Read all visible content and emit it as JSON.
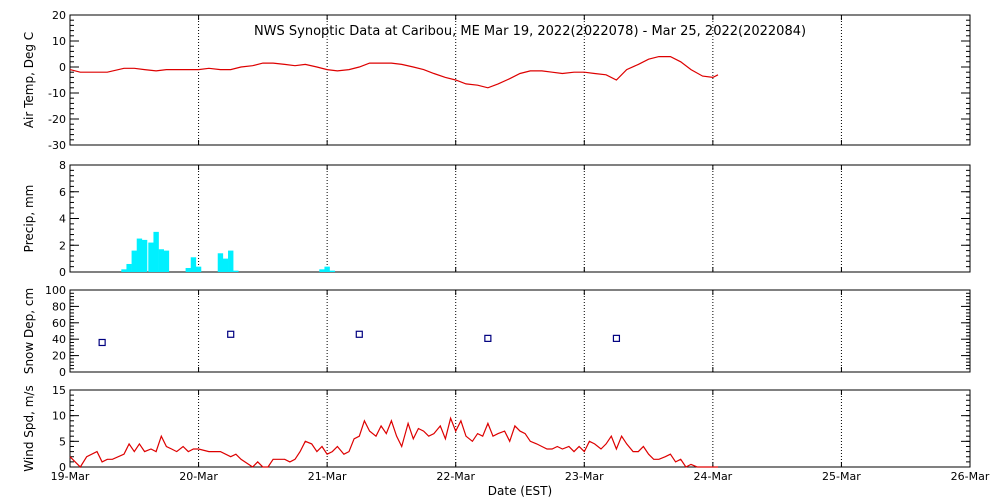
{
  "title": "NWS Synoptic Data at Caribou, ME   Mar 19, 2022(2022078) - Mar 25, 2022(2022084)",
  "xlabel": "Date (EST)",
  "x_ticks": [
    "19-Mar",
    "20-Mar",
    "21-Mar",
    "22-Mar",
    "23-Mar",
    "24-Mar",
    "25-Mar",
    "26-Mar"
  ],
  "colors": {
    "temp": "#dd0000",
    "precip": "#00f0ff",
    "snow": "#000080",
    "wind": "#dd0000",
    "grid": "#000000"
  },
  "chart_data": [
    {
      "type": "line",
      "ylabel": "Air Temp, Deg C",
      "ylim": [
        -30,
        20
      ],
      "yticks": [
        20,
        10,
        0,
        -10,
        -20,
        -30
      ],
      "x_unit": "days since 19-Mar 00:00 EST",
      "x": [
        0,
        0.08,
        0.17,
        0.29,
        0.42,
        0.5,
        0.58,
        0.67,
        0.75,
        0.83,
        0.92,
        1.0,
        1.08,
        1.17,
        1.25,
        1.33,
        1.42,
        1.5,
        1.58,
        1.67,
        1.75,
        1.83,
        1.92,
        2.0,
        2.08,
        2.17,
        2.25,
        2.33,
        2.42,
        2.5,
        2.58,
        2.67,
        2.75,
        2.83,
        2.92,
        3.0,
        3.08,
        3.17,
        3.25,
        3.33,
        3.42,
        3.5,
        3.58,
        3.67,
        3.75,
        3.83,
        3.92,
        4.0,
        4.08,
        4.17,
        4.25,
        4.33,
        4.42,
        4.5,
        4.58,
        4.67,
        4.75,
        4.83,
        4.92,
        5.0,
        5.04
      ],
      "series": [
        {
          "values": [
            -1,
            -2,
            -2,
            -2,
            -0.5,
            -0.5,
            -1,
            -1.5,
            -1,
            -1,
            -1,
            -1,
            -0.5,
            -1,
            -1,
            0,
            0.5,
            1.5,
            1.5,
            1,
            0.5,
            1,
            0,
            -1,
            -1.5,
            -1,
            0,
            1.5,
            1.5,
            1.5,
            1,
            0,
            -1,
            -2.5,
            -4,
            -5,
            -6.5,
            -7,
            -8,
            -6.5,
            -4.5,
            -2.5,
            -1.5,
            -1.5,
            -2,
            -2.5,
            -2,
            -2,
            -2.5,
            -3,
            -5,
            -1,
            1,
            3,
            4,
            4,
            2,
            -1,
            -3.5,
            -4,
            -3
          ]
        }
      ]
    },
    {
      "type": "bar",
      "ylabel": "Precip, mm",
      "ylim": [
        0,
        8
      ],
      "yticks": [
        8,
        6,
        4,
        2,
        0
      ],
      "x_unit": "days since 19-Mar 00:00 EST",
      "bar_width_days": 0.042,
      "x": [
        0.42,
        0.46,
        0.5,
        0.54,
        0.58,
        0.63,
        0.67,
        0.71,
        0.75,
        0.92,
        0.96,
        1.0,
        1.17,
        1.21,
        1.25,
        1.29,
        1.96,
        2.0,
        2.04
      ],
      "values": [
        0.2,
        0.6,
        1.6,
        2.5,
        2.4,
        2.2,
        3.0,
        1.7,
        1.6,
        0.3,
        1.1,
        0.4,
        1.4,
        1.0,
        1.6,
        0.1,
        0.2,
        0.4,
        0.1
      ]
    },
    {
      "type": "scatter",
      "ylabel": "Snow Dep, cm",
      "ylim": [
        0,
        100
      ],
      "yticks": [
        100,
        80,
        60,
        40,
        20,
        0
      ],
      "x_unit": "days since 19-Mar 00:00 EST",
      "x": [
        0.25,
        1.25,
        2.25,
        3.25,
        4.25
      ],
      "values": [
        36,
        46,
        46,
        41,
        41
      ]
    },
    {
      "type": "line",
      "ylabel": "Wind Spd, m/s",
      "ylim": [
        0,
        15
      ],
      "yticks": [
        15,
        10,
        5,
        0
      ],
      "x_unit": "days since 19-Mar 00:00 EST",
      "x": [
        0,
        0.08,
        0.13,
        0.21,
        0.25,
        0.29,
        0.33,
        0.42,
        0.46,
        0.5,
        0.54,
        0.58,
        0.63,
        0.67,
        0.71,
        0.75,
        0.79,
        0.83,
        0.88,
        0.92,
        0.96,
        1.0,
        1.08,
        1.17,
        1.25,
        1.29,
        1.33,
        1.42,
        1.46,
        1.5,
        1.54,
        1.58,
        1.67,
        1.71,
        1.75,
        1.79,
        1.83,
        1.88,
        1.92,
        1.96,
        2.0,
        2.04,
        2.08,
        2.13,
        2.17,
        2.21,
        2.25,
        2.29,
        2.33,
        2.38,
        2.42,
        2.46,
        2.5,
        2.54,
        2.58,
        2.63,
        2.67,
        2.71,
        2.75,
        2.79,
        2.83,
        2.88,
        2.92,
        2.96,
        3.0,
        3.04,
        3.08,
        3.13,
        3.17,
        3.21,
        3.25,
        3.29,
        3.33,
        3.38,
        3.42,
        3.46,
        3.5,
        3.54,
        3.58,
        3.63,
        3.67,
        3.71,
        3.75,
        3.79,
        3.83,
        3.88,
        3.92,
        3.96,
        4.0,
        4.04,
        4.08,
        4.13,
        4.17,
        4.21,
        4.25,
        4.29,
        4.33,
        4.38,
        4.42,
        4.46,
        4.5,
        4.54,
        4.58,
        4.63,
        4.67,
        4.71,
        4.75,
        4.79,
        4.83,
        4.88,
        4.92,
        4.96,
        5.0,
        5.04
      ],
      "series": [
        {
          "values": [
            2,
            0,
            2,
            3,
            1,
            1.5,
            1.5,
            2.5,
            4.5,
            3,
            4.5,
            3,
            3.5,
            3,
            6,
            4,
            3.5,
            3,
            4,
            3,
            3.5,
            3.5,
            3,
            3,
            2,
            2.5,
            1.5,
            0,
            1,
            0,
            0,
            1.5,
            1.5,
            1,
            1.5,
            3,
            5,
            4.5,
            3,
            4,
            2.5,
            3,
            4,
            2.5,
            3,
            5.5,
            6,
            9,
            7,
            6,
            8,
            6.5,
            9,
            6,
            4,
            8.5,
            5.5,
            7.5,
            7,
            6,
            6.5,
            8,
            5.5,
            9.5,
            7,
            9,
            6,
            5,
            6.5,
            6,
            8.5,
            6,
            6.5,
            7,
            5,
            8,
            7,
            6.5,
            5,
            4.5,
            4,
            3.5,
            3.5,
            4,
            3.5,
            4,
            3,
            4,
            3,
            5,
            4.5,
            3.5,
            4.5,
            6,
            3.5,
            6,
            4.5,
            3,
            3,
            4,
            2.5,
            1.5,
            1.5,
            2,
            2.5,
            1,
            1.5,
            0,
            0.5,
            0,
            0,
            0,
            0,
            0
          ]
        }
      ]
    }
  ]
}
